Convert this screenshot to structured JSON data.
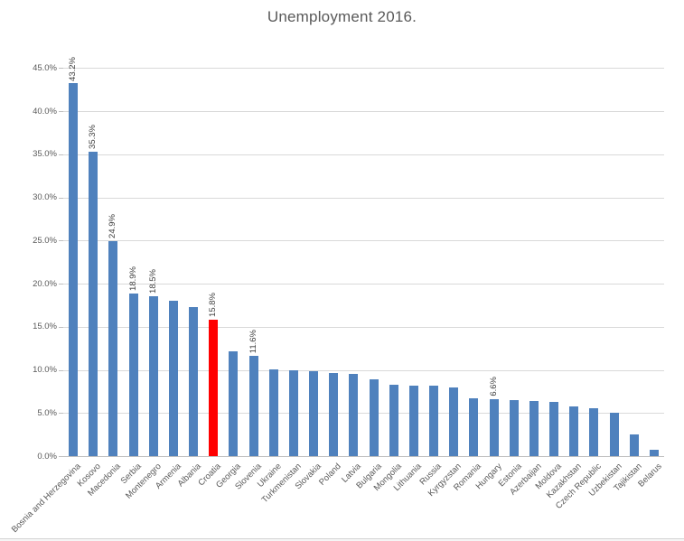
{
  "chart_data": {
    "type": "bar",
    "title": "Unemployment 2016.",
    "categories": [
      "Bosnia and Herzegovina",
      "Kosovo",
      "Macedonia",
      "Serbia",
      "Montenegro",
      "Armenia",
      "Albania",
      "Croatia",
      "Georgia",
      "Slovenia",
      "Ukraine",
      "Turkmenistan",
      "Slovakia",
      "Poland",
      "Latvia",
      "Bulgaria",
      "Mongolia",
      "Lithuania",
      "Russia",
      "Kyrgyzstan",
      "Romania",
      "Hungary",
      "Estonia",
      "Azerbaijan",
      "Moldova",
      "Kazakhstan",
      "Czech Republic",
      "Uzbekistan",
      "Tajikistan",
      "Belarus"
    ],
    "values": [
      43.2,
      35.3,
      24.9,
      18.9,
      18.5,
      18.0,
      17.3,
      15.8,
      12.1,
      11.6,
      10.1,
      10.0,
      9.8,
      9.6,
      9.5,
      8.9,
      8.3,
      8.2,
      8.2,
      8.0,
      6.7,
      6.6,
      6.5,
      6.4,
      6.3,
      5.8,
      5.6,
      5.0,
      2.5,
      0.7
    ],
    "data_labels": [
      "43.2%",
      "35.3%",
      "24.9%",
      "18.9%",
      "18.5%",
      "",
      "",
      "15.8%",
      "",
      "11.6%",
      "",
      "",
      "",
      "",
      "",
      "",
      "",
      "",
      "",
      "",
      "",
      "6.6%",
      "",
      "",
      "",
      "",
      "",
      "",
      "",
      ""
    ],
    "highlight_index": 7,
    "highlight_category": "Croatia",
    "xlabel": "",
    "ylabel": "",
    "ylim": [
      0,
      45
    ],
    "ytick_step": 5,
    "ytick_labels": [
      "0.0%",
      "5.0%",
      "10.0%",
      "15.0%",
      "20.0%",
      "25.0%",
      "30.0%",
      "35.0%",
      "40.0%",
      "45.0%"
    ],
    "grid": true,
    "legend": "none",
    "colors": {
      "bar": "#4F81BD",
      "highlight": "#FF0000",
      "grid": "#D9D9D9",
      "axis_line": "#BFBFBF",
      "title_text": "#595959",
      "axis_text": "#595959",
      "data_label_text": "#404040"
    }
  }
}
